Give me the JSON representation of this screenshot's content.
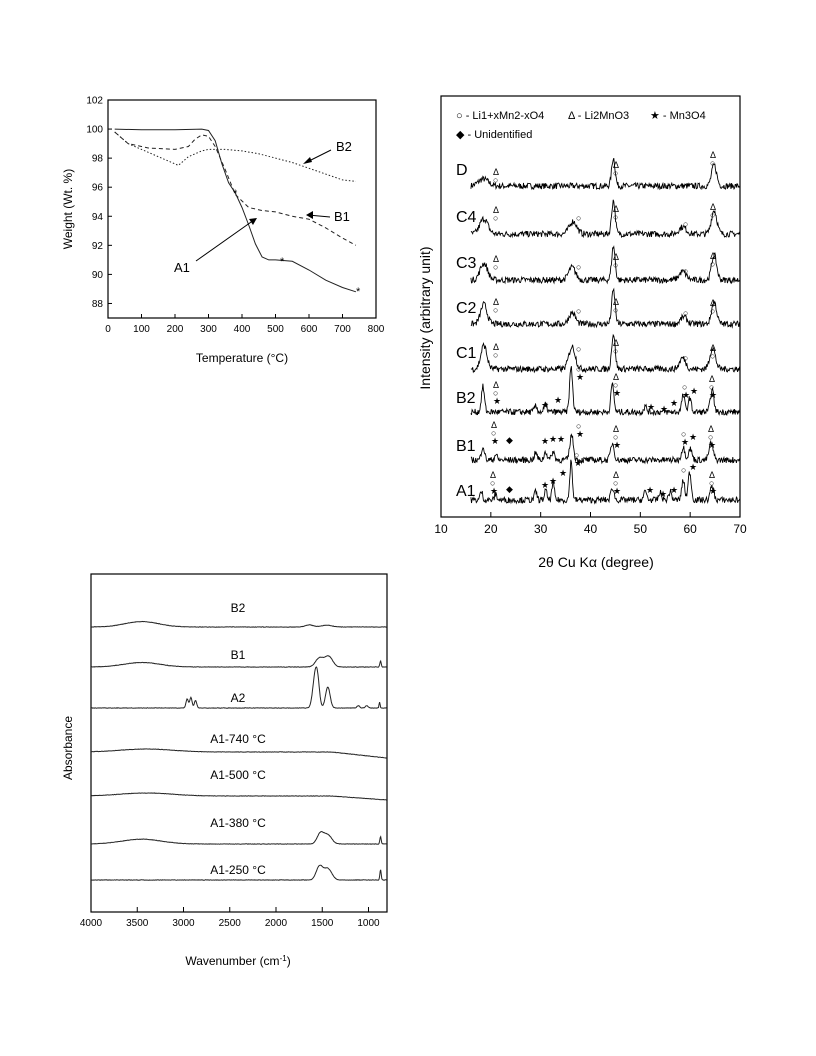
{
  "chart_data": [
    {
      "type": "line",
      "title": "",
      "xlabel": "Temperature (°C)",
      "ylabel": "Weight (Wt. %)",
      "xlim": [
        0,
        800
      ],
      "ylim": [
        87,
        102
      ],
      "xticks": [
        "0",
        "100",
        "200",
        "300",
        "400",
        "500",
        "600",
        "700",
        "800"
      ],
      "yticks": [
        "88",
        "90",
        "92",
        "94",
        "96",
        "98",
        "100",
        "102"
      ],
      "series": [
        {
          "name": "A1",
          "style": "solid",
          "x": [
            20,
            100,
            200,
            280,
            300,
            320,
            340,
            360,
            380,
            400,
            420,
            440,
            460,
            480,
            500,
            550,
            600,
            650,
            700,
            740
          ],
          "y": [
            100.0,
            99.95,
            99.95,
            100.0,
            99.9,
            99.2,
            97.6,
            96.3,
            95.6,
            94.6,
            93.4,
            92.1,
            91.2,
            91.0,
            91.0,
            90.9,
            90.3,
            89.6,
            89.1,
            88.8
          ]
        },
        {
          "name": "B1",
          "style": "dashed",
          "x": [
            20,
            60,
            120,
            200,
            240,
            260,
            280,
            300,
            320,
            350,
            380,
            420,
            460,
            500,
            550,
            600,
            650,
            700,
            740
          ],
          "y": [
            99.8,
            99.0,
            98.7,
            98.6,
            98.8,
            99.3,
            99.6,
            99.5,
            98.8,
            97.2,
            95.5,
            94.6,
            94.4,
            94.3,
            94.0,
            93.8,
            93.2,
            92.5,
            92.0
          ]
        },
        {
          "name": "B2",
          "style": "dotted",
          "x": [
            20,
            60,
            120,
            180,
            210,
            240,
            280,
            300,
            350,
            400,
            450,
            500,
            550,
            600,
            650,
            700,
            740
          ],
          "y": [
            99.8,
            99.0,
            98.4,
            97.8,
            97.5,
            98.1,
            98.5,
            98.6,
            98.6,
            98.5,
            98.3,
            98.0,
            97.7,
            97.3,
            96.9,
            96.5,
            96.4
          ]
        }
      ],
      "annotations": [
        "A1",
        "B1",
        "B2",
        "*",
        "*",
        "*"
      ]
    },
    {
      "type": "line",
      "title": "",
      "xlabel": "2θ Cu Kα (degree)",
      "ylabel": "Intensity (arbitrary unit)",
      "xlim": [
        10,
        70
      ],
      "xticks": [
        "10",
        "20",
        "30",
        "40",
        "50",
        "60",
        "70"
      ],
      "legend": {
        "placement": "top",
        "items": [
          "○ - Li1+xMn2-xO4",
          "Δ - Li2MnO3",
          "★ - Mn3O4",
          "◆ - Unidentified"
        ]
      },
      "series": [
        {
          "name": "D",
          "peaks": [
            {
              "x": 18.5,
              "h": 0.25,
              "w": 2.0
            },
            {
              "x": 44.6,
              "h": 1.0,
              "w": 0.7
            },
            {
              "x": 64.8,
              "h": 0.75,
              "w": 1.0
            }
          ]
        },
        {
          "name": "C4",
          "peaks": [
            {
              "x": 18.6,
              "h": 0.55,
              "w": 1.6
            },
            {
              "x": 36.5,
              "h": 0.45,
              "w": 1.5
            },
            {
              "x": 44.6,
              "h": 1.2,
              "w": 0.7
            },
            {
              "x": 58.5,
              "h": 0.25,
              "w": 1.5
            },
            {
              "x": 64.8,
              "h": 0.85,
              "w": 1.1
            }
          ]
        },
        {
          "name": "C3",
          "peaks": [
            {
              "x": 18.6,
              "h": 0.6,
              "w": 1.5
            },
            {
              "x": 36.3,
              "h": 0.45,
              "w": 1.4
            },
            {
              "x": 44.6,
              "h": 1.2,
              "w": 0.7
            },
            {
              "x": 58.5,
              "h": 0.3,
              "w": 1.4
            },
            {
              "x": 64.8,
              "h": 0.9,
              "w": 1.0
            }
          ]
        },
        {
          "name": "C2",
          "peaks": [
            {
              "x": 18.6,
              "h": 0.7,
              "w": 1.3
            },
            {
              "x": 36.3,
              "h": 0.4,
              "w": 1.3
            },
            {
              "x": 44.6,
              "h": 1.2,
              "w": 0.7
            },
            {
              "x": 58.7,
              "h": 0.25,
              "w": 1.3
            },
            {
              "x": 64.8,
              "h": 0.8,
              "w": 1.0
            }
          ]
        },
        {
          "name": "C1",
          "peaks": [
            {
              "x": 18.6,
              "h": 0.85,
              "w": 1.2
            },
            {
              "x": 36.3,
              "h": 0.8,
              "w": 1.3
            },
            {
              "x": 44.6,
              "h": 1.25,
              "w": 0.7
            },
            {
              "x": 58.5,
              "h": 0.4,
              "w": 1.2
            },
            {
              "x": 64.5,
              "h": 0.75,
              "w": 1.1
            }
          ]
        },
        {
          "name": "B2",
          "peaks": [
            {
              "x": 18.4,
              "h": 0.9,
              "w": 0.6
            },
            {
              "x": 29.0,
              "h": 0.2,
              "w": 0.6
            },
            {
              "x": 31.0,
              "h": 0.25,
              "w": 0.6
            },
            {
              "x": 36.1,
              "h": 1.6,
              "w": 0.6
            },
            {
              "x": 44.4,
              "h": 1.0,
              "w": 0.6
            },
            {
              "x": 51.0,
              "h": 0.2,
              "w": 0.6
            },
            {
              "x": 58.6,
              "h": 0.6,
              "w": 0.6
            },
            {
              "x": 59.9,
              "h": 0.5,
              "w": 0.6
            },
            {
              "x": 64.4,
              "h": 0.8,
              "w": 0.7
            }
          ]
        },
        {
          "name": "B1",
          "peaks": [
            {
              "x": 18.4,
              "h": 0.5,
              "w": 0.6
            },
            {
              "x": 21.0,
              "h": 0.2,
              "w": 0.5
            },
            {
              "x": 29.0,
              "h": 0.25,
              "w": 0.6
            },
            {
              "x": 31.0,
              "h": 0.3,
              "w": 0.6
            },
            {
              "x": 32.5,
              "h": 0.3,
              "w": 0.6
            },
            {
              "x": 36.2,
              "h": 0.9,
              "w": 0.7
            },
            {
              "x": 44.4,
              "h": 0.6,
              "w": 0.7
            },
            {
              "x": 58.6,
              "h": 0.45,
              "w": 0.7
            },
            {
              "x": 60.0,
              "h": 0.4,
              "w": 0.7
            },
            {
              "x": 64.2,
              "h": 0.6,
              "w": 0.8
            }
          ]
        },
        {
          "name": "A1",
          "peaks": [
            {
              "x": 18.1,
              "h": 0.3,
              "w": 0.5
            },
            {
              "x": 21.0,
              "h": 0.2,
              "w": 0.5
            },
            {
              "x": 29.0,
              "h": 0.3,
              "w": 0.5
            },
            {
              "x": 31.0,
              "h": 0.35,
              "w": 0.5
            },
            {
              "x": 32.5,
              "h": 0.6,
              "w": 0.5
            },
            {
              "x": 36.1,
              "h": 1.4,
              "w": 0.5
            },
            {
              "x": 44.4,
              "h": 0.45,
              "w": 0.6
            },
            {
              "x": 51.0,
              "h": 0.3,
              "w": 0.6
            },
            {
              "x": 54.0,
              "h": 0.25,
              "w": 0.6
            },
            {
              "x": 56.0,
              "h": 0.3,
              "w": 0.6
            },
            {
              "x": 58.6,
              "h": 0.7,
              "w": 0.6
            },
            {
              "x": 59.9,
              "h": 1.0,
              "w": 0.6
            },
            {
              "x": 64.4,
              "h": 0.5,
              "w": 0.7
            }
          ]
        }
      ]
    },
    {
      "type": "line",
      "title": "",
      "xlabel": "Wavenumber (cm-1)",
      "ylabel": "Absorbance",
      "xlim": [
        4000,
        800
      ],
      "xticks": [
        "4000",
        "3500",
        "3000",
        "2500",
        "2000",
        "1500",
        "1000"
      ],
      "series": [
        {
          "name": "B2",
          "peaks": [
            {
              "x": 3450,
              "h": 0.18,
              "w": 260
            },
            {
              "x": 1640,
              "h": 0.07,
              "w": 60
            },
            {
              "x": 1450,
              "h": 0.06,
              "w": 80
            }
          ]
        },
        {
          "name": "B1",
          "peaks": [
            {
              "x": 3450,
              "h": 0.15,
              "w": 280
            },
            {
              "x": 1530,
              "h": 0.3,
              "w": 60
            },
            {
              "x": 1430,
              "h": 0.35,
              "w": 60
            },
            {
              "x": 870,
              "h": 0.2,
              "w": 10
            }
          ]
        },
        {
          "name": "A2",
          "peaks": [
            {
              "x": 2960,
              "h": 0.3,
              "w": 18
            },
            {
              "x": 2920,
              "h": 0.35,
              "w": 18
            },
            {
              "x": 2870,
              "h": 0.25,
              "w": 18
            },
            {
              "x": 1580,
              "h": 0.95,
              "w": 35
            },
            {
              "x": 1550,
              "h": 0.75,
              "w": 30
            },
            {
              "x": 1440,
              "h": 0.7,
              "w": 35
            },
            {
              "x": 1110,
              "h": 0.08,
              "w": 20
            },
            {
              "x": 1020,
              "h": 0.08,
              "w": 20
            },
            {
              "x": 880,
              "h": 0.2,
              "w": 8
            }
          ]
        },
        {
          "name": "A1-740 °C",
          "peaks": [
            {
              "x": 3400,
              "h": 0.1,
              "w": 400
            }
          ]
        },
        {
          "name": "A1-500 °C",
          "peaks": [
            {
              "x": 3400,
              "h": 0.1,
              "w": 400
            }
          ]
        },
        {
          "name": "A1-380 °C",
          "peaks": [
            {
              "x": 3450,
              "h": 0.16,
              "w": 300
            },
            {
              "x": 1520,
              "h": 0.35,
              "w": 50
            },
            {
              "x": 1440,
              "h": 0.3,
              "w": 60
            },
            {
              "x": 870,
              "h": 0.25,
              "w": 10
            }
          ]
        },
        {
          "name": "A1-250 °C",
          "peaks": [
            {
              "x": 1530,
              "h": 0.45,
              "w": 50
            },
            {
              "x": 1440,
              "h": 0.38,
              "w": 60
            },
            {
              "x": 870,
              "h": 0.35,
              "w": 10
            }
          ]
        }
      ]
    }
  ]
}
